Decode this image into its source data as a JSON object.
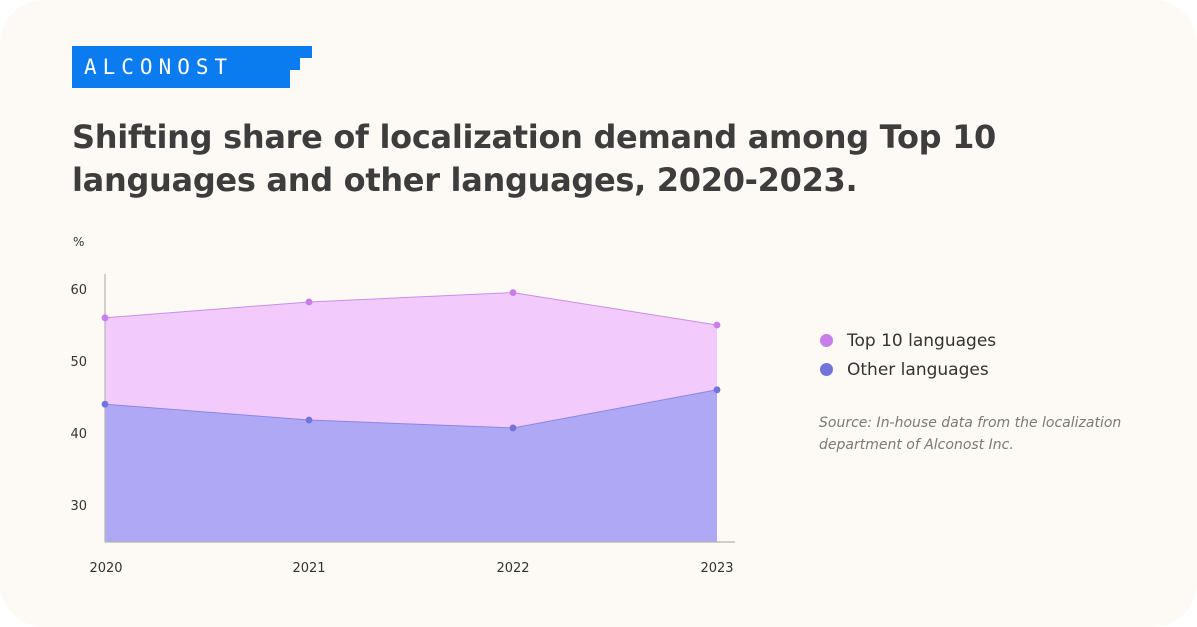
{
  "logo": {
    "text": "ALCONOST",
    "color": "#0b7bf0"
  },
  "title": "Shifting share of localization demand among Top 10 languages and other languages, 2020-2023.",
  "source": "Source: In-house data from the localization department of Alconost Inc.",
  "legend": [
    {
      "label": "Top 10 languages",
      "color": "#c77dea"
    },
    {
      "label": "Other languages",
      "color": "#7374db"
    }
  ],
  "chart_data": {
    "type": "area",
    "title": "Shifting share of localization demand among Top 10 languages and other languages, 2020-2023.",
    "ylabel": "%",
    "xlabel": "",
    "categories": [
      "2020",
      "2021",
      "2022",
      "2023"
    ],
    "y_ticks": [
      30,
      40,
      50,
      60
    ],
    "ylim": [
      26,
      63
    ],
    "series": [
      {
        "name": "Top 10 languages",
        "values": [
          56,
          58.2,
          59.5,
          55
        ],
        "fill": "#f3cafc",
        "point_color": "#c77dea",
        "line_color": "#c98fe8"
      },
      {
        "name": "Other languages",
        "values": [
          44,
          41.8,
          40.7,
          46
        ],
        "fill": "#afa9f5",
        "point_color": "#7374db",
        "line_color": "#8a86e6"
      }
    ],
    "grid": false,
    "legend_position": "right"
  }
}
